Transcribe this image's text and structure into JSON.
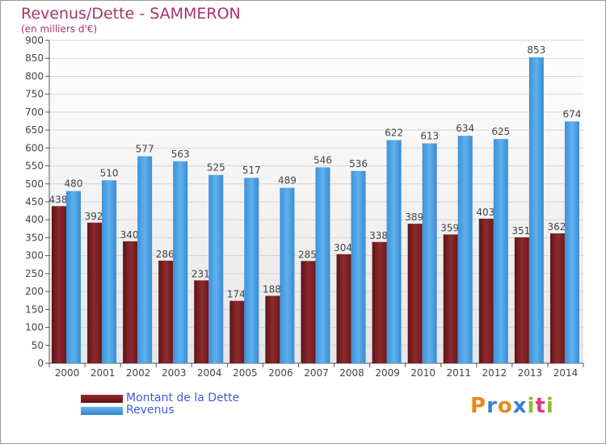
{
  "title": "Revenus/Dette - SAMMERON",
  "subtitle": "(en milliers d'€)",
  "colors": {
    "dette": "#7a1f22",
    "revenus": "#4a9ee0",
    "title": "#a8336a",
    "legend_text": "#3b5bdb"
  },
  "legend": {
    "dette": "Montant de la Dette",
    "revenus": "Revenus"
  },
  "logo": {
    "text": "Proxiti",
    "letters": [
      "P",
      "r",
      "o",
      "x",
      "i",
      "t",
      "i"
    ]
  },
  "chart_data": {
    "type": "bar",
    "categories": [
      "2000",
      "2001",
      "2002",
      "2003",
      "2004",
      "2005",
      "2006",
      "2007",
      "2008",
      "2009",
      "2010",
      "2011",
      "2012",
      "2013",
      "2014"
    ],
    "series": [
      {
        "name": "Montant de la Dette",
        "values": [
          438,
          392,
          340,
          286,
          231,
          174,
          188,
          285,
          304,
          338,
          389,
          359,
          403,
          351,
          362
        ]
      },
      {
        "name": "Revenus",
        "values": [
          480,
          510,
          577,
          563,
          525,
          517,
          489,
          546,
          536,
          622,
          613,
          634,
          625,
          853,
          674
        ]
      }
    ],
    "yticks": [
      0,
      50,
      100,
      150,
      200,
      250,
      300,
      350,
      400,
      450,
      500,
      550,
      600,
      650,
      700,
      750,
      800,
      850,
      900
    ],
    "ylim": [
      0,
      900
    ],
    "grid": true,
    "legend_position": "bottom-left"
  }
}
